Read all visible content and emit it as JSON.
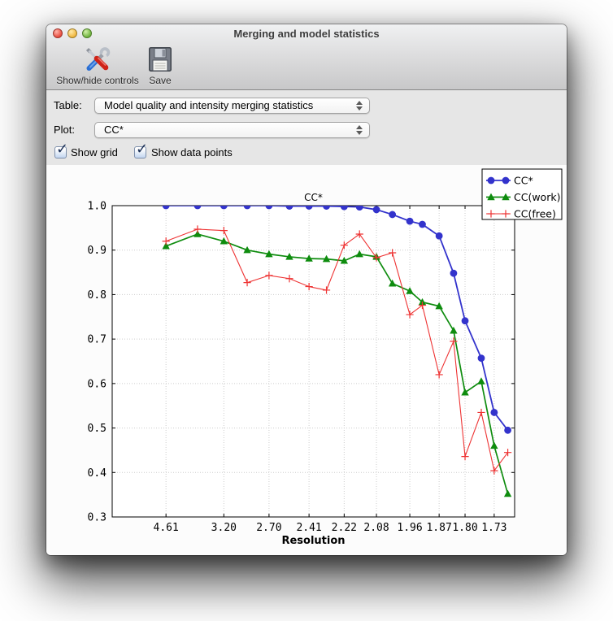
{
  "window": {
    "title": "Merging and model statistics"
  },
  "toolbar": {
    "buttons": [
      {
        "label": "Show/hide controls",
        "icon": "crossed-tools-icon"
      },
      {
        "label": "Save",
        "icon": "floppy-disk-icon"
      }
    ]
  },
  "controls": {
    "table": {
      "label": "Table:",
      "value": "Model quality and intensity merging statistics"
    },
    "plot": {
      "label": "Plot:",
      "value": "CC*"
    },
    "checkboxes": [
      {
        "label": "Show grid",
        "checked": true
      },
      {
        "label": "Show data points",
        "checked": true
      }
    ]
  },
  "chart_data": {
    "type": "line",
    "title": "CC*",
    "xlabel": "Resolution",
    "x_axis_note": "resolution shells; x position proportional to 1/d^2",
    "x_resolution_bins": [
      4.61,
      3.66,
      3.2,
      2.91,
      2.7,
      2.54,
      2.41,
      2.31,
      2.22,
      2.15,
      2.08,
      2.02,
      1.96,
      1.92,
      1.87,
      1.83,
      1.8,
      1.76,
      1.73,
      1.7
    ],
    "xtick_labels": [
      "4.61",
      "3.20",
      "2.70",
      "2.41",
      "2.22",
      "2.08",
      "1.96",
      "1.87",
      "1.80",
      "1.73"
    ],
    "xtick_every": 2,
    "ylim": [
      0.3,
      1.0
    ],
    "yticks": [
      0.3,
      0.4,
      0.5,
      0.6,
      0.7,
      0.8,
      0.9,
      1.0
    ],
    "grid": true,
    "grid_color": "#cccccc",
    "show_data_points": true,
    "legend_position": "upper right",
    "series": [
      {
        "name": "CC*",
        "color": "#3333cc",
        "marker": "circle",
        "values": [
          1.0,
          1.0,
          1.0,
          1.0,
          1.0,
          0.999,
          0.999,
          0.999,
          0.998,
          0.997,
          0.991,
          0.98,
          0.965,
          0.958,
          0.932,
          0.848,
          0.741,
          0.657,
          0.535,
          0.495
        ]
      },
      {
        "name": "CC(work)",
        "color": "#0e8c0e",
        "marker": "triangle",
        "values": [
          0.909,
          0.936,
          0.92,
          0.9,
          0.891,
          0.885,
          0.881,
          0.88,
          0.876,
          0.891,
          0.885,
          0.825,
          0.808,
          0.783,
          0.774,
          0.719,
          0.58,
          0.605,
          0.46,
          0.352
        ]
      },
      {
        "name": "CC(free)",
        "color": "#ee3333",
        "marker": "plus",
        "values": [
          0.92,
          0.947,
          0.944,
          0.827,
          0.843,
          0.836,
          0.818,
          0.81,
          0.911,
          0.936,
          0.883,
          0.894,
          0.755,
          0.776,
          0.62,
          0.695,
          0.436,
          0.535,
          0.404,
          0.445
        ]
      }
    ]
  }
}
